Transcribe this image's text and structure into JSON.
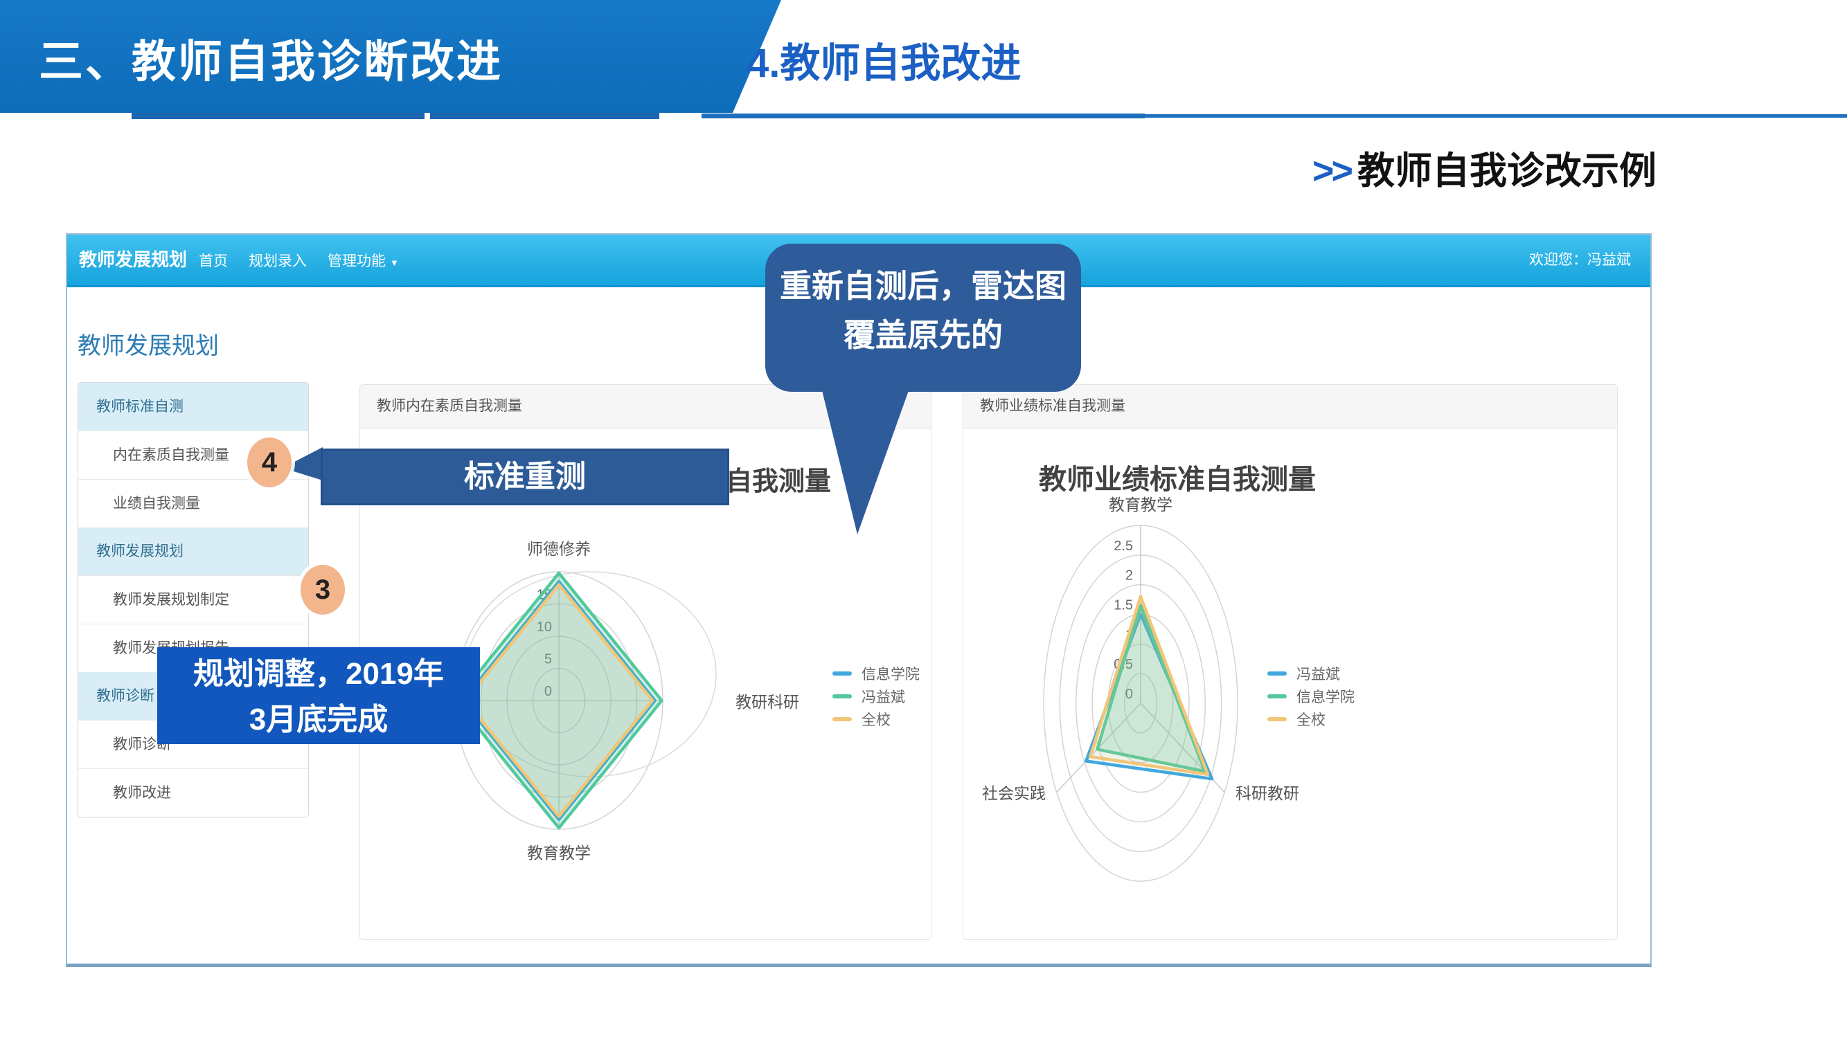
{
  "slide": {
    "banner_title": "三、教师自我诊断改进",
    "section_title": "4.教师自我改进",
    "subtitle_prefix": ">>",
    "subtitle": "教师自我诊改示例"
  },
  "app": {
    "navbar": {
      "brand": "教师发展规划",
      "items": [
        {
          "label": "首页",
          "has_dropdown": false
        },
        {
          "label": "规划录入",
          "has_dropdown": false
        },
        {
          "label": "管理功能",
          "has_dropdown": true
        }
      ],
      "caret": "▼",
      "welcome": "欢迎您：冯益斌"
    },
    "page_title": "教师发展规划",
    "sidebar": {
      "items": [
        {
          "label": "教师标准自测",
          "type": "header"
        },
        {
          "label": "内在素质自我测量",
          "type": "item"
        },
        {
          "label": "业绩自我测量",
          "type": "item"
        },
        {
          "label": "教师发展规划",
          "type": "header"
        },
        {
          "label": "教师发展规划制定",
          "type": "item"
        },
        {
          "label": "教师发展规划报告",
          "type": "item"
        },
        {
          "label": "教师诊断",
          "type": "header"
        },
        {
          "label": "教师诊断",
          "type": "item"
        },
        {
          "label": "教师改进",
          "type": "item"
        }
      ]
    },
    "panels": [
      {
        "header": "教师内在素质自我测量"
      },
      {
        "header": "教师业绩标准自我测量"
      }
    ]
  },
  "chart_data": [
    {
      "type": "radar",
      "title": "教师内在素质自我测量",
      "axes": [
        "师德修养",
        "教研科研",
        "教育教学",
        ""
      ],
      "max": 20,
      "interval": 5,
      "tick_labels": [
        "15",
        "10",
        "5",
        "0"
      ],
      "grid": "circular",
      "legend_position": "right",
      "series": [
        {
          "name": "信息学院",
          "color": "#41a7dc",
          "fill_opacity": 0.15,
          "values": [
            18.5,
            18.5,
            18.5,
            18.5
          ]
        },
        {
          "name": "冯益斌",
          "color": "#52c99b",
          "fill_opacity": 0.25,
          "values": [
            19.8,
            19.8,
            19.8,
            19.8
          ]
        },
        {
          "name": "全校",
          "color": "#f2c577",
          "fill_opacity": 0.15,
          "values": [
            18,
            18,
            18,
            18
          ]
        }
      ]
    },
    {
      "type": "radar",
      "title": "教师业绩标准自我测量",
      "axes": [
        "教育教学",
        "科研教研",
        "社会实践"
      ],
      "max": 3,
      "interval": 0.5,
      "tick_labels": [
        "2.5",
        "2",
        "1.5",
        "1",
        "0.5",
        "0"
      ],
      "grid": "circular",
      "legend_position": "right",
      "series": [
        {
          "name": "冯益斌",
          "color": "#41a7dc",
          "fill_opacity": 0.08,
          "values": [
            1.5,
            2.55,
            1.95
          ]
        },
        {
          "name": "信息学院",
          "color": "#52c99b",
          "fill_opacity": 0.25,
          "values": [
            1.65,
            2.3,
            1.55
          ]
        },
        {
          "name": "全校",
          "color": "#f2c577",
          "fill_opacity": 0.12,
          "values": [
            1.8,
            2.4,
            1.8
          ]
        }
      ]
    }
  ],
  "annotations": {
    "bubble_line1": "重新自测后，雷达图",
    "bubble_line2": "覆盖原先的",
    "retest_label": "标准重测",
    "plan_line1": "规划调整，2019年",
    "plan_line2": "3月底完成",
    "step_marker_top": "4",
    "step_marker_bottom": "3"
  },
  "colors": {
    "banner_blue": "#1273c0",
    "accent_blue": "#1b60c4",
    "navbar_top": "#41c1ef",
    "navbar_bottom": "#16a3dd",
    "callout_blue": "#2e5b99",
    "plan_label_blue": "#1157bd",
    "step_circle_peach": "#f2b58c",
    "sidebar_header_bg": "#d9edf7",
    "series_blue": "#41a7dc",
    "series_green": "#52c99b",
    "series_orange": "#f2c577"
  }
}
